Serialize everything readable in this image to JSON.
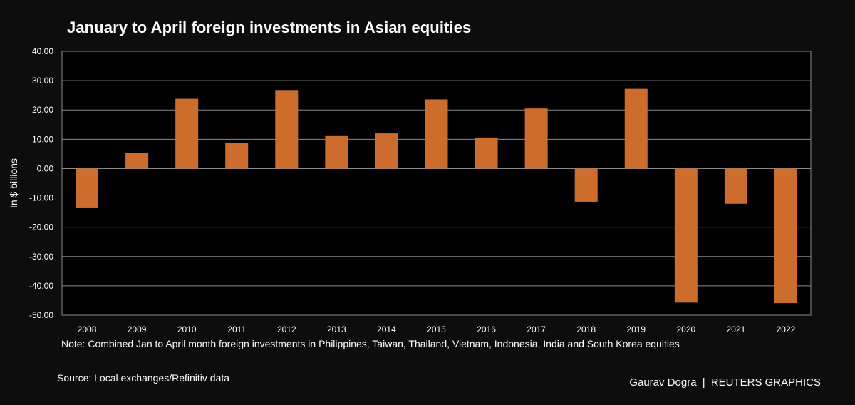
{
  "chart_data": {
    "type": "bar",
    "title": "January to April foreign investments in Asian equities",
    "xlabel": "",
    "ylabel": "In $ billions",
    "ylim": [
      -50,
      40
    ],
    "yticks": [
      "40.00",
      "30.00",
      "20.00",
      "10.00",
      "0.00",
      "-10.00",
      "-20.00",
      "-30.00",
      "-40.00",
      "-50.00"
    ],
    "ytick_values": [
      40,
      30,
      20,
      10,
      0,
      -10,
      -20,
      -30,
      -40,
      -50
    ],
    "categories": [
      "2008",
      "2009",
      "2010",
      "2011",
      "2012",
      "2013",
      "2014",
      "2015",
      "2016",
      "2017",
      "2018",
      "2019",
      "2020",
      "2021",
      "2022"
    ],
    "values": [
      -13.5,
      5.3,
      23.8,
      8.8,
      26.8,
      11.1,
      12.0,
      23.6,
      10.6,
      20.5,
      -11.3,
      27.2,
      -45.7,
      -12.0,
      -45.9
    ],
    "grid": true,
    "bar_color": "#cc6d2e",
    "background": "#000000"
  },
  "note": "Note: Combined Jan to April month foreign investments in Philippines, Taiwan, Thailand, Vietnam, Indonesia, India and South Korea equities",
  "source": "Source: Local exchanges/Refinitiv data",
  "credit": {
    "author": "Gaurav Dogra",
    "separator": "|",
    "brand": "REUTERS GRAPHICS"
  }
}
